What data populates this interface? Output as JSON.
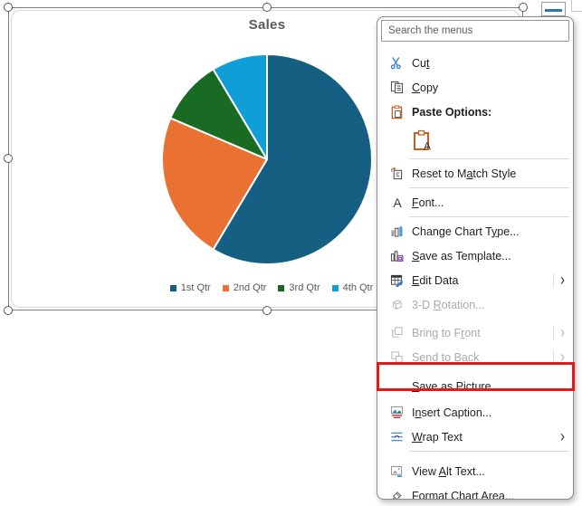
{
  "chart_data": {
    "type": "pie",
    "title": "Sales",
    "categories": [
      "1st Qtr",
      "2nd Qtr",
      "3rd Qtr",
      "4th Qtr"
    ],
    "values": [
      8.2,
      3.2,
      1.4,
      1.2
    ],
    "colors": [
      "#156082",
      "#E97132",
      "#196B24",
      "#0F9ED5"
    ],
    "legend_position": "bottom",
    "start_angle_deg": 0,
    "direction": "clockwise",
    "slice_border_color": "#ffffff",
    "title_color": "#595959",
    "legend_text_color": "#595959"
  },
  "context_menu": {
    "search_placeholder": "Search the menus",
    "items": [
      {
        "id": "cut",
        "pre": "Cu",
        "key": "t",
        "post": "",
        "icon": "scissors-icon"
      },
      {
        "id": "copy",
        "pre": "",
        "key": "C",
        "post": "opy",
        "icon": "copy-icon"
      },
      {
        "id": "paste-options",
        "pre": "Paste Options:",
        "key": "",
        "post": "",
        "icon": "paste-icon",
        "bold": true
      },
      {
        "id": "paste-keep-text",
        "pre": "",
        "key": "",
        "post": "",
        "icon": "paste-text-icon"
      },
      {
        "id": "reset-to-match-style",
        "pre": "Reset to M",
        "key": "a",
        "post": "tch Style",
        "icon": "reset-icon"
      },
      {
        "id": "font",
        "pre": "",
        "key": "F",
        "post": "ont...",
        "icon": "font-icon"
      },
      {
        "id": "change-chart-type",
        "pre": "Change Chart T",
        "key": "y",
        "post": "pe...",
        "icon": "chart-type-icon"
      },
      {
        "id": "save-as-template",
        "pre": "",
        "key": "S",
        "post": "ave as Template...",
        "icon": "save-template-icon"
      },
      {
        "id": "edit-data",
        "pre": "",
        "key": "E",
        "post": "dit Data",
        "icon": "edit-data-icon",
        "submenu": true
      },
      {
        "id": "3d-rotation",
        "pre": "3-D ",
        "key": "R",
        "post": "otation...",
        "icon": "rotation-icon",
        "disabled": true
      },
      {
        "id": "bring-to-front",
        "pre": "Bring to F",
        "key": "r",
        "post": "ont",
        "icon": "bring-front-icon",
        "disabled": true,
        "submenu": true
      },
      {
        "id": "send-to-back",
        "pre": "Send to Bac",
        "key": "k",
        "post": "",
        "icon": "send-back-icon",
        "disabled": true,
        "submenu": true
      },
      {
        "id": "save-as-picture",
        "pre": "",
        "key": "S",
        "post": "ave as Picture...",
        "icon": "",
        "annotated": true
      },
      {
        "id": "insert-caption",
        "pre": "I",
        "key": "n",
        "post": "sert Caption...",
        "icon": "caption-icon"
      },
      {
        "id": "wrap-text",
        "pre": "",
        "key": "W",
        "post": "rap Text",
        "icon": "wrap-text-icon",
        "submenu": true
      },
      {
        "id": "view-alt-text",
        "pre": "View ",
        "key": "A",
        "post": "lt Text...",
        "icon": "alt-text-icon"
      },
      {
        "id": "format-chart-area",
        "pre": "",
        "key": "F",
        "post": "ormat Chart Area...",
        "icon": "format-area-icon"
      }
    ]
  },
  "annotation": {
    "shape": "rectangle",
    "color": "#E01B1B",
    "target": "Save as Picture..."
  }
}
